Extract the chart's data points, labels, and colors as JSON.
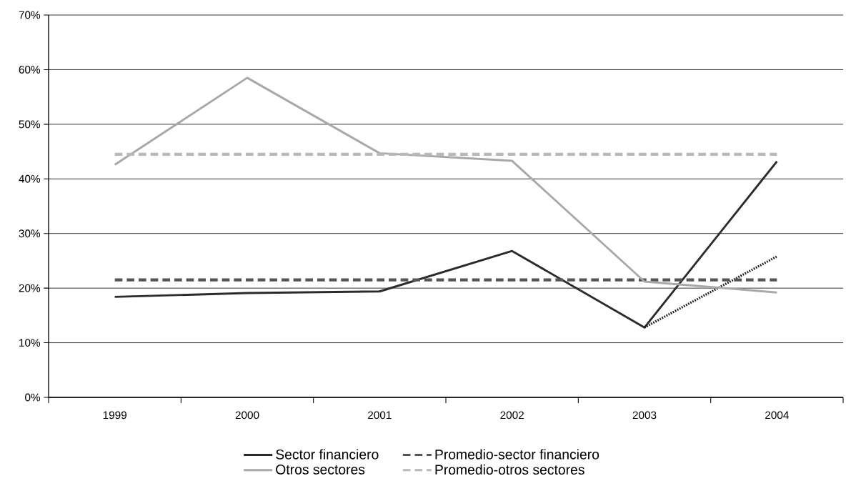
{
  "chart_data": {
    "type": "line",
    "categories": [
      "1999",
      "2000",
      "2001",
      "2002",
      "2003",
      "2004"
    ],
    "series": [
      {
        "name": "Sector financiero",
        "color": "#2b2b2b",
        "line_style": "solid",
        "values": [
          18.4,
          19.1,
          19.4,
          26.8,
          12.8,
          43.2
        ]
      },
      {
        "color": "#1a1a1a",
        "line_style": "dotted",
        "values": [
          null,
          null,
          null,
          null,
          12.8,
          25.8
        ]
      },
      {
        "name": "Promedio-sector financiero",
        "color": "#555555",
        "line_style": "dashed",
        "values": [
          21.5,
          21.5,
          21.5,
          21.5,
          21.5,
          21.5
        ]
      },
      {
        "name": "Otros sectores",
        "color": "#a8a8a8",
        "line_style": "solid",
        "values": [
          42.6,
          58.5,
          44.7,
          43.3,
          21.2,
          19.2
        ]
      },
      {
        "name": "Promedio-otros sectores",
        "color": "#b8b8b8",
        "line_style": "dashed",
        "values": [
          44.5,
          44.5,
          44.5,
          44.5,
          44.5,
          44.5
        ]
      }
    ],
    "ylim": [
      0,
      70
    ],
    "yticks": [
      {
        "value": 0,
        "label": "0%"
      },
      {
        "value": 10,
        "label": "10%"
      },
      {
        "value": 20,
        "label": "20%"
      },
      {
        "value": 30,
        "label": "30%"
      },
      {
        "value": 40,
        "label": "40%"
      },
      {
        "value": 50,
        "label": "50%"
      },
      {
        "value": 60,
        "label": "60%"
      },
      {
        "value": 70,
        "label": "70%"
      }
    ],
    "grid": "y",
    "legend": "bottom"
  }
}
